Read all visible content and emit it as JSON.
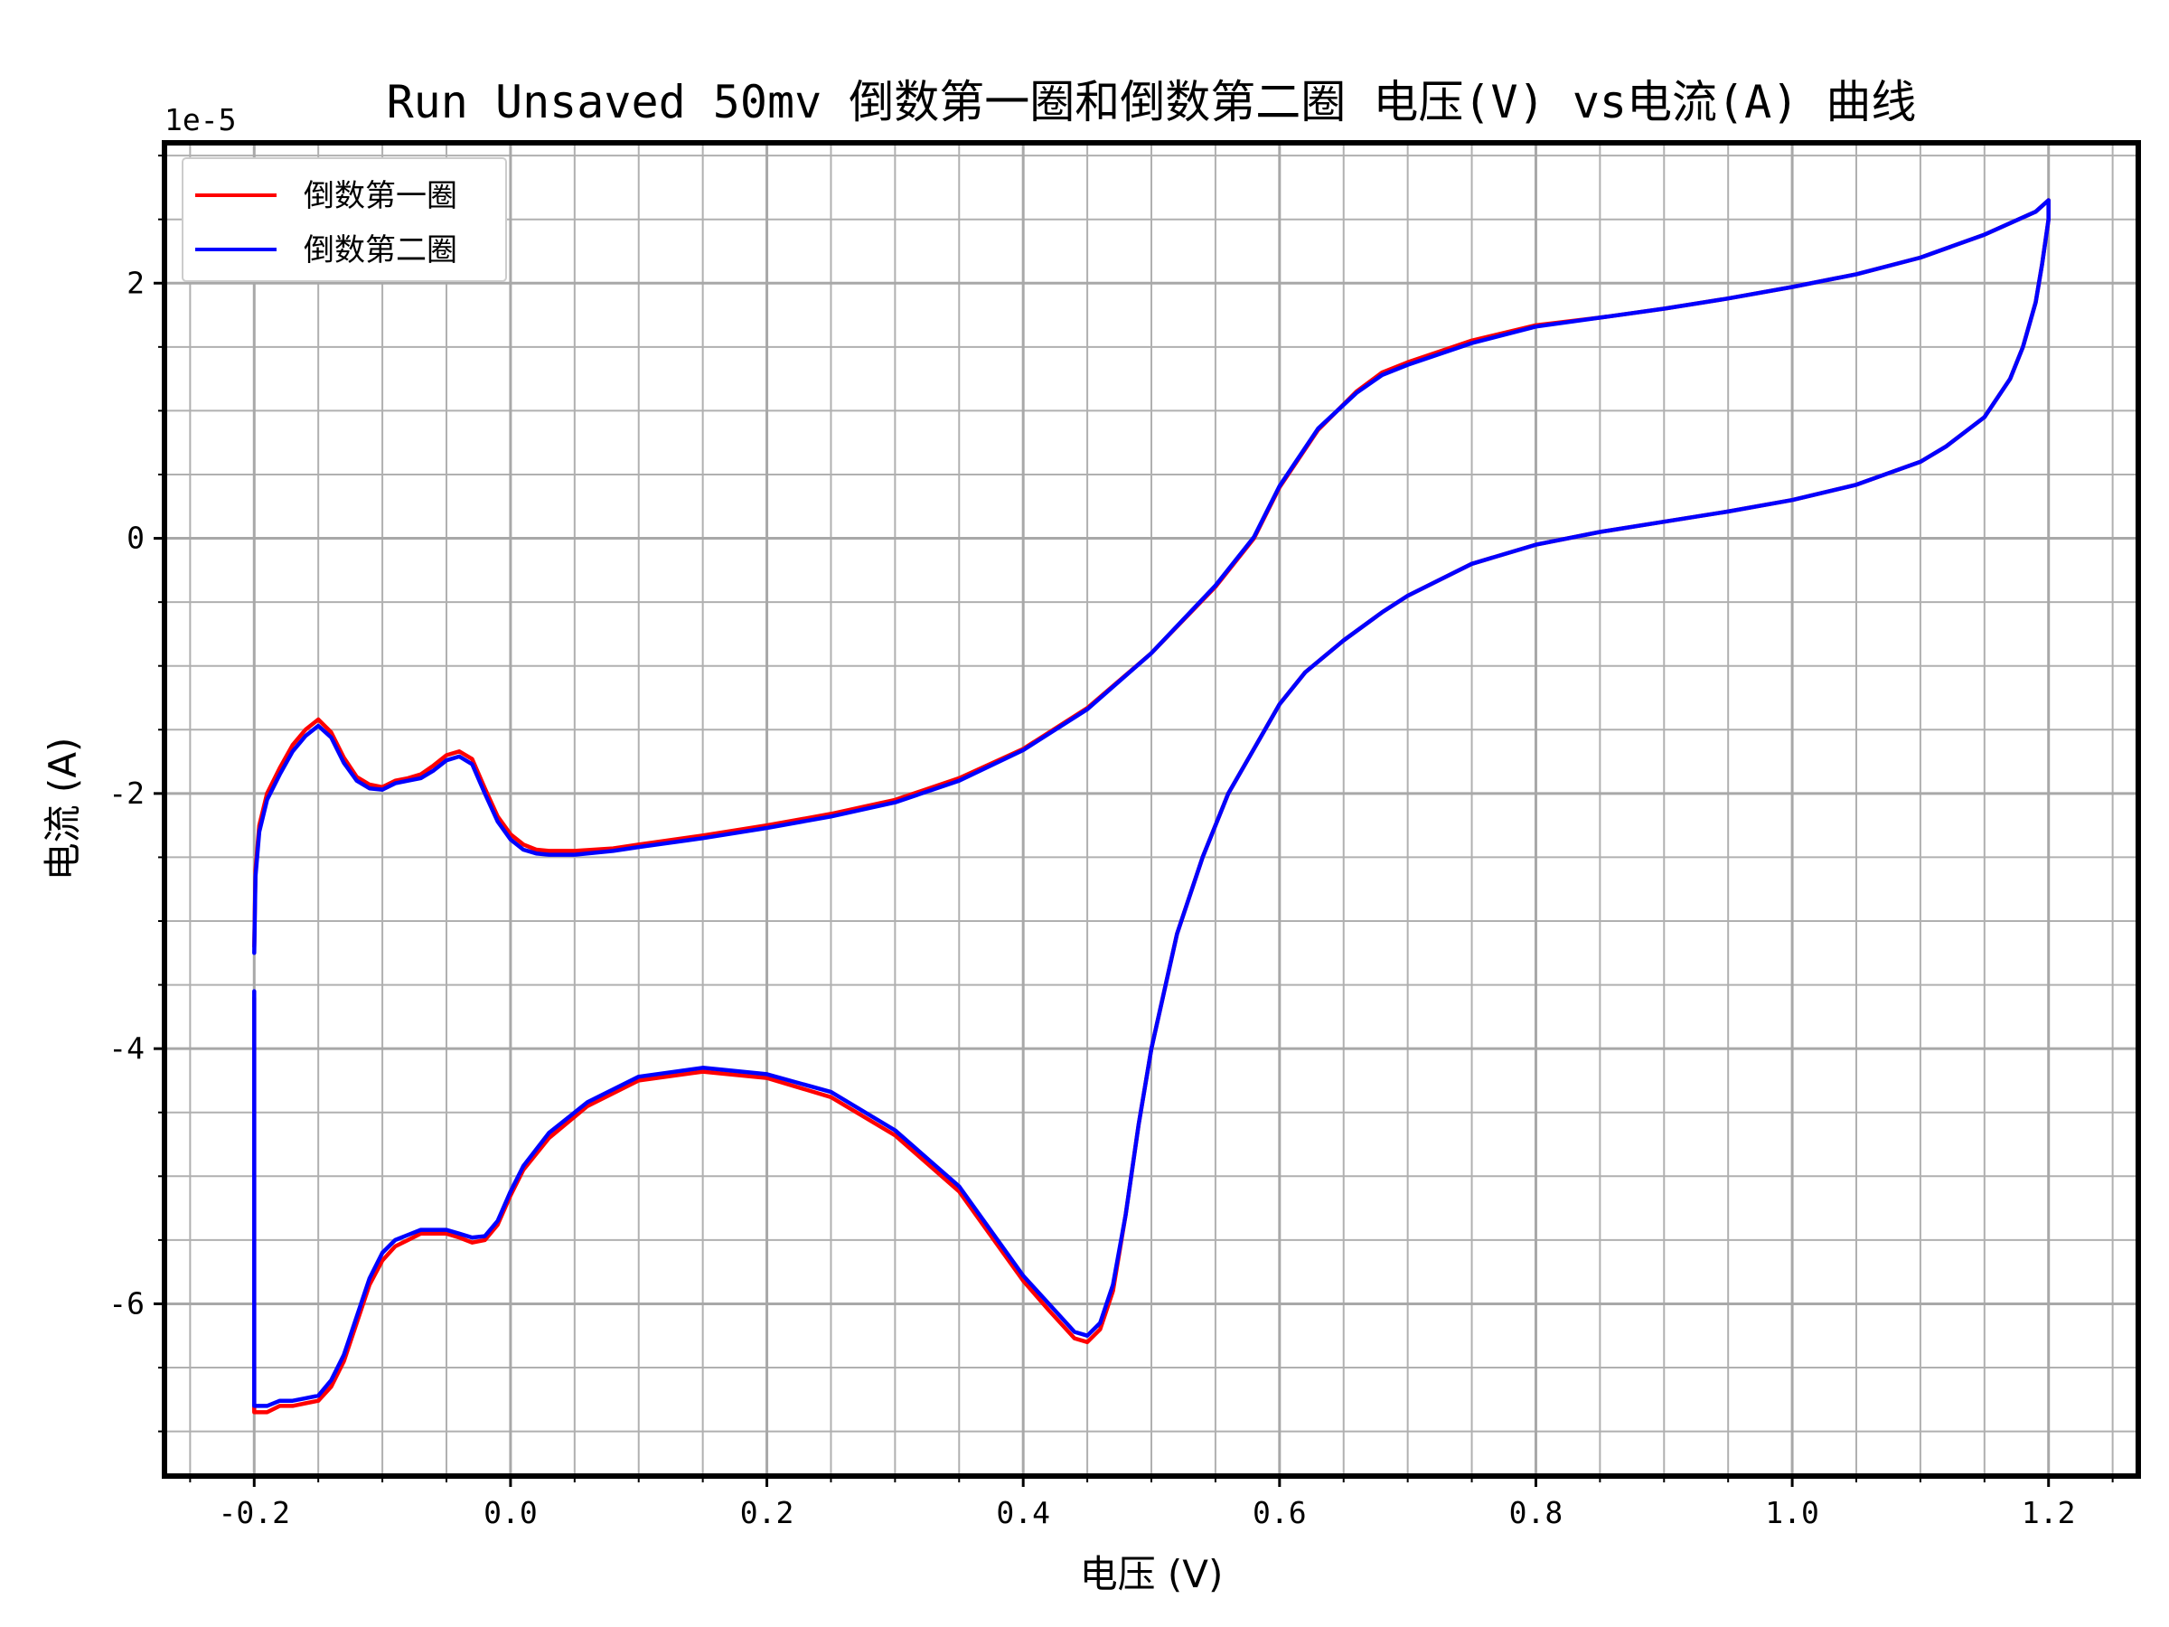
{
  "chart_data": {
    "type": "line",
    "title": "Run Unsaved 50mv 倒数第一圈和倒数第二圈 电压(V) vs电流(A) 曲线",
    "xlabel": "电压 (V)",
    "ylabel": "电流 (A)",
    "y_scale_note": "1e-5",
    "xlim": [
      -0.27,
      1.27
    ],
    "ylim": [
      -7.35,
      3.1
    ],
    "x_ticks": [
      -0.2,
      0.0,
      0.2,
      0.4,
      0.6,
      0.8,
      1.0,
      1.2
    ],
    "x_tick_labels": [
      "-0.2",
      "0.0",
      "0.2",
      "0.4",
      "0.6",
      "0.8",
      "1.0",
      "1.2"
    ],
    "y_ticks": [
      -6,
      -4,
      -2,
      0,
      2
    ],
    "y_tick_labels": [
      "-6",
      "-4",
      "-2",
      "0",
      "2"
    ],
    "grid": "on (major and minor)",
    "legend_position": "upper-left",
    "series": [
      {
        "name": "倒数第一圈",
        "color": "#ff0000",
        "x": [
          -0.2,
          -0.199,
          -0.196,
          -0.19,
          -0.18,
          -0.17,
          -0.16,
          -0.15,
          -0.14,
          -0.13,
          -0.12,
          -0.11,
          -0.1,
          -0.09,
          -0.08,
          -0.07,
          -0.06,
          -0.05,
          -0.04,
          -0.03,
          -0.02,
          -0.01,
          0.0,
          0.01,
          0.02,
          0.03,
          0.05,
          0.08,
          0.1,
          0.15,
          0.2,
          0.25,
          0.3,
          0.35,
          0.4,
          0.45,
          0.5,
          0.55,
          0.58,
          0.6,
          0.63,
          0.66,
          0.68,
          0.7,
          0.75,
          0.8,
          0.85,
          0.9,
          0.95,
          1.0,
          1.05,
          1.1,
          1.15,
          1.19,
          1.2,
          1.2,
          1.195,
          1.19,
          1.18,
          1.17,
          1.15,
          1.12,
          1.1,
          1.05,
          1.0,
          0.95,
          0.9,
          0.85,
          0.8,
          0.75,
          0.7,
          0.68,
          0.65,
          0.62,
          0.6,
          0.58,
          0.56,
          0.54,
          0.52,
          0.5,
          0.49,
          0.48,
          0.47,
          0.46,
          0.45,
          0.44,
          0.42,
          0.4,
          0.35,
          0.3,
          0.25,
          0.2,
          0.15,
          0.1,
          0.06,
          0.03,
          0.01,
          0.0,
          -0.01,
          -0.02,
          -0.03,
          -0.04,
          -0.05,
          -0.06,
          -0.07,
          -0.08,
          -0.09,
          -0.1,
          -0.11,
          -0.12,
          -0.13,
          -0.14,
          -0.15,
          -0.16,
          -0.17,
          -0.18,
          -0.19,
          -0.2,
          -0.2
        ],
        "y": [
          -3.2,
          -2.6,
          -2.25,
          -2.0,
          -1.8,
          -1.62,
          -1.5,
          -1.42,
          -1.52,
          -1.72,
          -1.87,
          -1.93,
          -1.95,
          -1.9,
          -1.88,
          -1.85,
          -1.78,
          -1.7,
          -1.67,
          -1.73,
          -1.96,
          -2.18,
          -2.32,
          -2.4,
          -2.44,
          -2.45,
          -2.45,
          -2.43,
          -2.4,
          -2.33,
          -2.25,
          -2.16,
          -2.05,
          -1.88,
          -1.65,
          -1.33,
          -0.9,
          -0.38,
          0.0,
          0.4,
          0.85,
          1.15,
          1.3,
          1.38,
          1.55,
          1.67,
          1.73,
          1.8,
          1.88,
          1.97,
          2.07,
          2.2,
          2.38,
          2.56,
          2.65,
          2.5,
          2.15,
          1.85,
          1.5,
          1.25,
          0.95,
          0.72,
          0.6,
          0.42,
          0.3,
          0.21,
          0.13,
          0.05,
          -0.05,
          -0.2,
          -0.45,
          -0.58,
          -0.8,
          -1.05,
          -1.3,
          -1.65,
          -2.0,
          -2.5,
          -3.1,
          -4.0,
          -4.6,
          -5.3,
          -5.9,
          -6.2,
          -6.3,
          -6.27,
          -6.05,
          -5.82,
          -5.12,
          -4.68,
          -4.38,
          -4.23,
          -4.18,
          -4.25,
          -4.45,
          -4.7,
          -4.95,
          -5.15,
          -5.38,
          -5.5,
          -5.52,
          -5.48,
          -5.45,
          -5.45,
          -5.45,
          -5.5,
          -5.55,
          -5.66,
          -5.85,
          -6.15,
          -6.45,
          -6.65,
          -6.76,
          -6.78,
          -6.8,
          -6.8,
          -6.85,
          -6.85,
          -3.6
        ]
      },
      {
        "name": "倒数第二圈",
        "color": "#0000ff",
        "x": [
          -0.2,
          -0.199,
          -0.196,
          -0.19,
          -0.18,
          -0.17,
          -0.16,
          -0.15,
          -0.14,
          -0.13,
          -0.12,
          -0.11,
          -0.1,
          -0.09,
          -0.08,
          -0.07,
          -0.06,
          -0.05,
          -0.04,
          -0.03,
          -0.02,
          -0.01,
          0.0,
          0.01,
          0.02,
          0.03,
          0.05,
          0.08,
          0.1,
          0.15,
          0.2,
          0.25,
          0.3,
          0.35,
          0.4,
          0.45,
          0.5,
          0.55,
          0.58,
          0.6,
          0.63,
          0.66,
          0.68,
          0.7,
          0.75,
          0.8,
          0.85,
          0.9,
          0.95,
          1.0,
          1.05,
          1.1,
          1.15,
          1.19,
          1.2,
          1.2,
          1.195,
          1.19,
          1.18,
          1.17,
          1.15,
          1.12,
          1.1,
          1.05,
          1.0,
          0.95,
          0.9,
          0.85,
          0.8,
          0.75,
          0.7,
          0.68,
          0.65,
          0.62,
          0.6,
          0.58,
          0.56,
          0.54,
          0.52,
          0.5,
          0.49,
          0.48,
          0.47,
          0.46,
          0.45,
          0.44,
          0.42,
          0.4,
          0.35,
          0.3,
          0.25,
          0.2,
          0.15,
          0.1,
          0.06,
          0.03,
          0.01,
          0.0,
          -0.01,
          -0.02,
          -0.03,
          -0.04,
          -0.05,
          -0.06,
          -0.07,
          -0.08,
          -0.09,
          -0.1,
          -0.11,
          -0.12,
          -0.13,
          -0.14,
          -0.15,
          -0.16,
          -0.17,
          -0.18,
          -0.19,
          -0.2,
          -0.2
        ],
        "y": [
          -3.25,
          -2.65,
          -2.3,
          -2.05,
          -1.85,
          -1.67,
          -1.55,
          -1.47,
          -1.56,
          -1.76,
          -1.9,
          -1.96,
          -1.97,
          -1.92,
          -1.9,
          -1.88,
          -1.82,
          -1.74,
          -1.71,
          -1.77,
          -2.0,
          -2.22,
          -2.36,
          -2.44,
          -2.47,
          -2.48,
          -2.48,
          -2.45,
          -2.42,
          -2.35,
          -2.27,
          -2.18,
          -2.07,
          -1.9,
          -1.66,
          -1.34,
          -0.9,
          -0.37,
          0.01,
          0.41,
          0.86,
          1.14,
          1.28,
          1.36,
          1.53,
          1.66,
          1.73,
          1.8,
          1.88,
          1.97,
          2.07,
          2.2,
          2.38,
          2.56,
          2.65,
          2.5,
          2.15,
          1.85,
          1.5,
          1.25,
          0.95,
          0.72,
          0.6,
          0.42,
          0.3,
          0.21,
          0.13,
          0.05,
          -0.05,
          -0.2,
          -0.45,
          -0.58,
          -0.8,
          -1.05,
          -1.3,
          -1.65,
          -2.0,
          -2.5,
          -3.1,
          -4.0,
          -4.6,
          -5.3,
          -5.85,
          -6.15,
          -6.25,
          -6.22,
          -6.0,
          -5.78,
          -5.08,
          -4.64,
          -4.34,
          -4.2,
          -4.15,
          -4.22,
          -4.42,
          -4.66,
          -4.92,
          -5.12,
          -5.35,
          -5.47,
          -5.48,
          -5.45,
          -5.42,
          -5.42,
          -5.42,
          -5.46,
          -5.5,
          -5.6,
          -5.8,
          -6.1,
          -6.4,
          -6.6,
          -6.72,
          -6.74,
          -6.76,
          -6.76,
          -6.8,
          -6.8,
          -3.55
        ]
      }
    ]
  }
}
